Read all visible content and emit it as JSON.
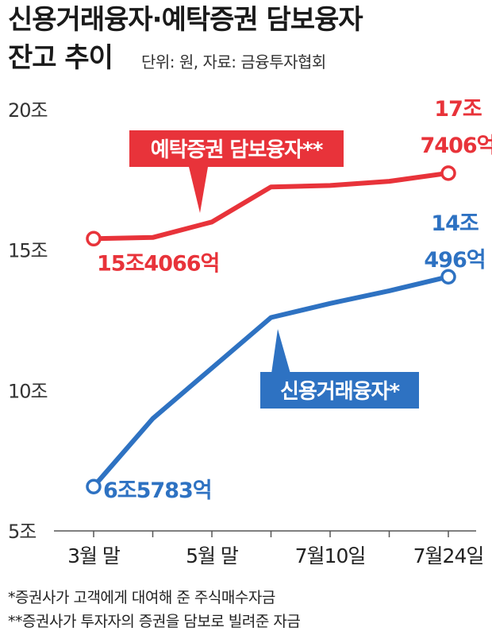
{
  "title": {
    "line1": "신용거래융자·예탁증권 담보융자",
    "line2": "잔고 추이",
    "unit_note": "단위: 원, 자료: 금융투자협회"
  },
  "colors": {
    "deposit": "#e8333a",
    "credit": "#2e72c2",
    "axis": "#555555",
    "text": "#1a1a1a"
  },
  "chart_data": {
    "type": "line",
    "categories": [
      "3월 말",
      "",
      "5월 말",
      "",
      "7월10일",
      "",
      "7월24일"
    ],
    "x_tick_labels": [
      "3월 말",
      "5월 말",
      "7월10일",
      "7월24일"
    ],
    "y_tick_labels": [
      "20조",
      "15조",
      "10조",
      "5조"
    ],
    "y_ticks": [
      20,
      15,
      10,
      5
    ],
    "ylim": [
      5,
      20
    ],
    "grid": false,
    "series": [
      {
        "name": "예탁증권 담보융자**",
        "key": "deposit",
        "values": [
          15.4066,
          15.45,
          16.0,
          17.25,
          17.3,
          17.45,
          17.7406
        ],
        "start_label": "15조4066억",
        "end_label_line1": "17조",
        "end_label_line2": "7406억"
      },
      {
        "name": "신용거래융자*",
        "key": "credit",
        "values": [
          6.5783,
          9.0,
          10.8,
          12.6,
          13.1,
          13.55,
          14.0496
        ],
        "start_label": "6조5783억",
        "end_label_line1": "14조",
        "end_label_line2": "496억"
      }
    ]
  },
  "notes": [
    "*증권사가 고객에게 대여해 준 주식매수자금",
    "**증권사가 투자자의 증권을 담보로 빌려준 자금"
  ]
}
